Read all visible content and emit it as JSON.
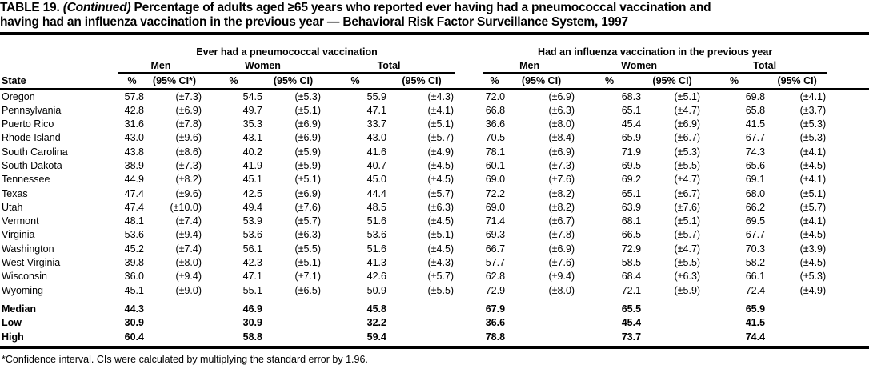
{
  "title": {
    "label": "TABLE 19.",
    "continued": "(Continued)",
    "line1": "Percentage of adults aged ≥65 years who reported ever having had a pneumococcal vaccination and",
    "line2": "having had an influenza vaccination in the previous year — Behavioral Risk Factor Surveillance System, 1997"
  },
  "table": {
    "state_header": "State",
    "sections": [
      {
        "title": "Ever had a pneumococcal vaccination",
        "groups": [
          {
            "label": "Men",
            "pct": "%",
            "ci": "(95% CI*)"
          },
          {
            "label": "Women",
            "pct": "%",
            "ci": "(95% CI)"
          },
          {
            "label": "Total",
            "pct": "%",
            "ci": "(95% CI)"
          }
        ]
      },
      {
        "title": "Had an influenza vaccination in the previous year",
        "groups": [
          {
            "label": "Men",
            "pct": "%",
            "ci": "(95% CI)"
          },
          {
            "label": "Women",
            "pct": "%",
            "ci": "(95% CI)"
          },
          {
            "label": "Total",
            "pct": "%",
            "ci": "(95% CI)"
          }
        ]
      }
    ],
    "rows": [
      {
        "state": "Oregon",
        "values": [
          "57.8",
          "(±7.3)",
          "54.5",
          "(±5.3)",
          "55.9",
          "(±4.3)",
          "72.0",
          "(±6.9)",
          "68.3",
          "(±5.1)",
          "69.8",
          "(±4.1)"
        ]
      },
      {
        "state": "Pennsylvania",
        "values": [
          "42.8",
          "(±6.9)",
          "49.7",
          "(±5.1)",
          "47.1",
          "(±4.1)",
          "66.8",
          "(±6.3)",
          "65.1",
          "(±4.7)",
          "65.8",
          "(±3.7)"
        ]
      },
      {
        "state": "Puerto Rico",
        "values": [
          "31.6",
          "(±7.8)",
          "35.3",
          "(±6.9)",
          "33.7",
          "(±5.1)",
          "36.6",
          "(±8.0)",
          "45.4",
          "(±6.9)",
          "41.5",
          "(±5.3)"
        ]
      },
      {
        "state": "Rhode Island",
        "values": [
          "43.0",
          "(±9.6)",
          "43.1",
          "(±6.9)",
          "43.0",
          "(±5.7)",
          "70.5",
          "(±8.4)",
          "65.9",
          "(±6.7)",
          "67.7",
          "(±5.3)"
        ]
      },
      {
        "state": "South Carolina",
        "values": [
          "43.8",
          "(±8.6)",
          "40.2",
          "(±5.9)",
          "41.6",
          "(±4.9)",
          "78.1",
          "(±6.9)",
          "71.9",
          "(±5.3)",
          "74.3",
          "(±4.1)"
        ]
      },
      {
        "state": "South Dakota",
        "values": [
          "38.9",
          "(±7.3)",
          "41.9",
          "(±5.9)",
          "40.7",
          "(±4.5)",
          "60.1",
          "(±7.3)",
          "69.5",
          "(±5.5)",
          "65.6",
          "(±4.5)"
        ]
      },
      {
        "state": "Tennessee",
        "values": [
          "44.9",
          "(±8.2)",
          "45.1",
          "(±5.1)",
          "45.0",
          "(±4.5)",
          "69.0",
          "(±7.6)",
          "69.2",
          "(±4.7)",
          "69.1",
          "(±4.1)"
        ]
      },
      {
        "state": "Texas",
        "values": [
          "47.4",
          "(±9.6)",
          "42.5",
          "(±6.9)",
          "44.4",
          "(±5.7)",
          "72.2",
          "(±8.2)",
          "65.1",
          "(±6.7)",
          "68.0",
          "(±5.1)"
        ]
      },
      {
        "state": "Utah",
        "values": [
          "47.4",
          "(±10.0)",
          "49.4",
          "(±7.6)",
          "48.5",
          "(±6.3)",
          "69.0",
          "(±8.2)",
          "63.9",
          "(±7.6)",
          "66.2",
          "(±5.7)"
        ]
      },
      {
        "state": "Vermont",
        "values": [
          "48.1",
          "(±7.4)",
          "53.9",
          "(±5.7)",
          "51.6",
          "(±4.5)",
          "71.4",
          "(±6.7)",
          "68.1",
          "(±5.1)",
          "69.5",
          "(±4.1)"
        ]
      },
      {
        "state": "Virginia",
        "values": [
          "53.6",
          "(±9.4)",
          "53.6",
          "(±6.3)",
          "53.6",
          "(±5.1)",
          "69.3",
          "(±7.8)",
          "66.5",
          "(±5.7)",
          "67.7",
          "(±4.5)"
        ]
      },
      {
        "state": "Washington",
        "values": [
          "45.2",
          "(±7.4)",
          "56.1",
          "(±5.5)",
          "51.6",
          "(±4.5)",
          "66.7",
          "(±6.9)",
          "72.9",
          "(±4.7)",
          "70.3",
          "(±3.9)"
        ]
      },
      {
        "state": "West Virginia",
        "values": [
          "39.8",
          "(±8.0)",
          "42.3",
          "(±5.1)",
          "41.3",
          "(±4.3)",
          "57.7",
          "(±7.6)",
          "58.5",
          "(±5.5)",
          "58.2",
          "(±4.5)"
        ]
      },
      {
        "state": "Wisconsin",
        "values": [
          "36.0",
          "(±9.4)",
          "47.1",
          "(±7.1)",
          "42.6",
          "(±5.7)",
          "62.8",
          "(±9.4)",
          "68.4",
          "(±6.3)",
          "66.1",
          "(±5.3)"
        ]
      },
      {
        "state": "Wyoming",
        "values": [
          "45.1",
          "(±9.0)",
          "55.1",
          "(±6.5)",
          "50.9",
          "(±5.5)",
          "72.9",
          "(±8.0)",
          "72.1",
          "(±5.9)",
          "72.4",
          "(±4.9)"
        ]
      }
    ],
    "summary_rows": [
      {
        "label": "Median",
        "values": [
          "44.3",
          "46.9",
          "45.8",
          "67.9",
          "65.5",
          "65.9"
        ]
      },
      {
        "label": "Low",
        "values": [
          "30.9",
          "30.9",
          "32.2",
          "36.6",
          "45.4",
          "41.5"
        ]
      },
      {
        "label": "High",
        "values": [
          "60.4",
          "58.8",
          "59.4",
          "78.8",
          "73.7",
          "74.4"
        ]
      }
    ]
  },
  "footnote": "*Confidence interval. CIs were calculated by multiplying the standard error by 1.96."
}
